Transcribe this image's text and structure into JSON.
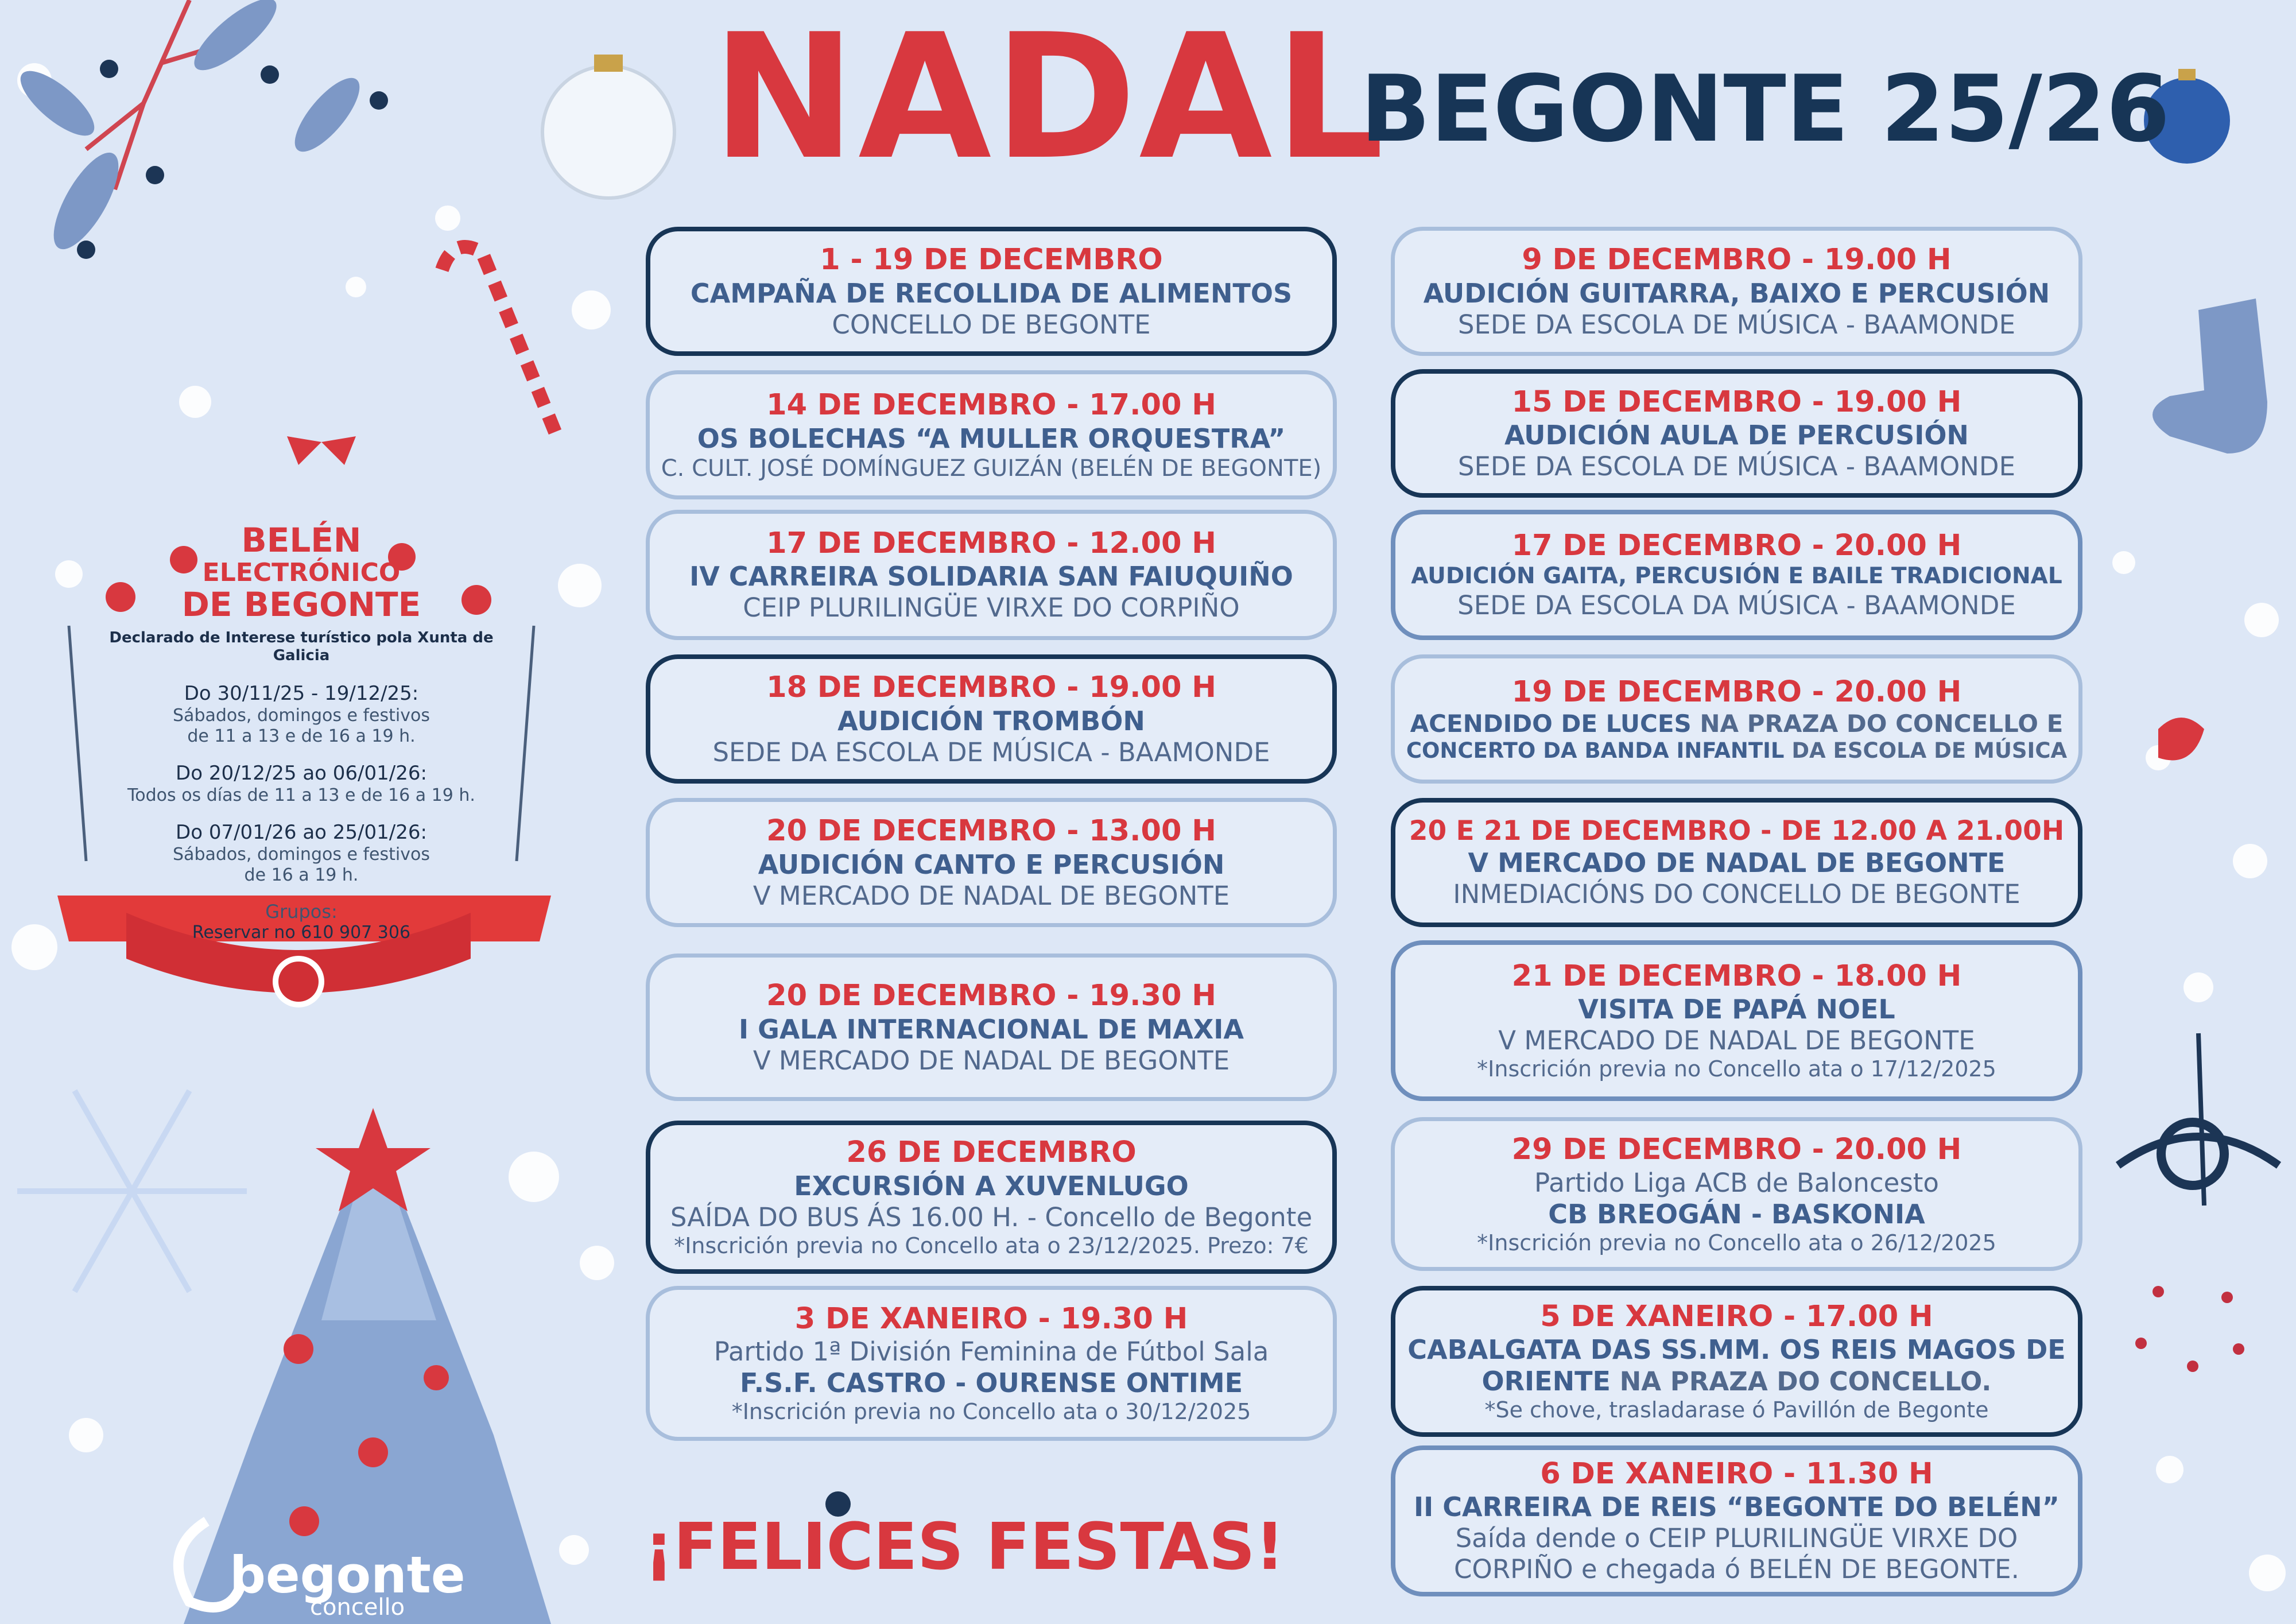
{
  "header": {
    "title": "NADAL",
    "subtitle": "BEGONTE 25/26"
  },
  "events": [
    {
      "border": "dark",
      "date": "1 - 19 DE DECEMBRO",
      "lines": [
        [
          [
            "b",
            "CAMPAÑA DE RECOLLIDA DE ALIMENTOS"
          ]
        ],
        [
          [
            "p",
            "CONCELLO DE BEGONTE"
          ]
        ]
      ]
    },
    {
      "border": "light",
      "date": "14 DE DECEMBRO - 17.00 H",
      "lines": [
        [
          [
            "b",
            "OS BOLECHAS “A MULLER ORQUESTRA”"
          ]
        ],
        [
          [
            "p",
            "C. CULT. JOSÉ DOMÍNGUEZ GUIZÁN (BELÉN DE BEGONTE)"
          ]
        ]
      ]
    },
    {
      "border": "light",
      "date": "17 DE DECEMBRO - 12.00 H",
      "lines": [
        [
          [
            "b",
            "IV CARREIRA SOLIDARIA SAN FAIUQUIÑO"
          ]
        ],
        [
          [
            "p",
            "CEIP PLURILINGÜE VIRXE DO CORPIÑO"
          ]
        ]
      ]
    },
    {
      "border": "dark",
      "date": "18 DE DECEMBRO - 19.00 H",
      "lines": [
        [
          [
            "b",
            "AUDICIÓN TROMBÓN"
          ]
        ],
        [
          [
            "p",
            "SEDE DA ESCOLA DE MÚSICA - BAAMONDE"
          ]
        ]
      ]
    },
    {
      "border": "light",
      "date": "20 DE DECEMBRO - 13.00 H",
      "lines": [
        [
          [
            "b",
            "AUDICIÓN CANTO E PERCUSIÓN"
          ]
        ],
        [
          [
            "p",
            "V MERCADO DE NADAL DE BEGONTE"
          ]
        ]
      ]
    },
    {
      "border": "light",
      "date": "20 DE DECEMBRO - 19.30 H",
      "lines": [
        [
          [
            "b",
            "I GALA INTERNACIONAL DE MAXIA"
          ]
        ],
        [
          [
            "p",
            "V MERCADO DE NADAL DE BEGONTE"
          ]
        ]
      ]
    },
    {
      "border": "dark",
      "date": "26 DE DECEMBRO",
      "lines": [
        [
          [
            "b",
            "EXCURSIÓN A XUVENLUGO"
          ]
        ],
        [
          [
            "p",
            "SAÍDA DO BUS ÁS 16.00 H. - Concello de Begonte"
          ]
        ],
        [
          [
            "n",
            "*Inscrición previa no Concello ata o 23/12/2025. Prezo: 7€"
          ]
        ]
      ]
    },
    {
      "border": "light",
      "date": "3 DE XANEIRO - 19.30 H",
      "lines": [
        [
          [
            "p",
            "Partido 1ª División Feminina de Fútbol Sala"
          ]
        ],
        [
          [
            "b",
            "F.S.F. CASTRO - OURENSE ONTIME"
          ]
        ],
        [
          [
            "n",
            "*Inscrición previa no Concello ata o 30/12/2025"
          ]
        ]
      ]
    },
    {
      "border": "light",
      "date": "9 DE DECEMBRO - 19.00 H",
      "lines": [
        [
          [
            "b",
            "AUDICIÓN GUITARRA, BAIXO E PERCUSIÓN"
          ]
        ],
        [
          [
            "p",
            "SEDE DA ESCOLA DE MÚSICA - BAAMONDE"
          ]
        ]
      ]
    },
    {
      "border": "dark",
      "date": "15 DE DECEMBRO - 19.00 H",
      "lines": [
        [
          [
            "b",
            "AUDICIÓN AULA DE PERCUSIÓN"
          ]
        ],
        [
          [
            "p",
            "SEDE DA ESCOLA DE MÚSICA - BAAMONDE"
          ]
        ]
      ]
    },
    {
      "border": "medium",
      "date": "17 DE DECEMBRO - 20.00 H",
      "lines": [
        [
          [
            "b",
            "AUDICIÓN GAITA, PERCUSIÓN E BAILE TRADICIONAL"
          ]
        ],
        [
          [
            "p",
            "SEDE DA ESCOLA DA MÚSICA - BAAMONDE"
          ]
        ]
      ]
    },
    {
      "border": "light",
      "date": "19 DE DECEMBRO - 20.00 H",
      "lines": [
        [
          [
            "b",
            "ACENDIDO DE LUCES"
          ],
          [
            "p",
            " NA PRAZA DO CONCELLO E"
          ]
        ],
        [
          [
            "b",
            "CONCERTO DA BANDA INFANTIL"
          ],
          [
            "p",
            " DA ESCOLA DE MÚSICA"
          ]
        ]
      ]
    },
    {
      "border": "dark",
      "date": "20 E 21 DE DECEMBRO - DE 12.00 A 21.00H",
      "lines": [
        [
          [
            "b",
            "V MERCADO DE NADAL DE BEGONTE"
          ]
        ],
        [
          [
            "p",
            "INMEDIACIÓNS DO CONCELLO DE BEGONTE"
          ]
        ]
      ]
    },
    {
      "border": "medium",
      "date": "21 DE DECEMBRO - 18.00 H",
      "lines": [
        [
          [
            "b",
            "VISITA DE PAPÁ NOEL"
          ]
        ],
        [
          [
            "p",
            "V MERCADO DE NADAL DE BEGONTE"
          ]
        ],
        [
          [
            "n",
            "*Inscrición previa no Concello ata o 17/12/2025"
          ]
        ]
      ]
    },
    {
      "border": "light",
      "date": "29 DE DECEMBRO - 20.00 H",
      "lines": [
        [
          [
            "p",
            "Partido Liga ACB de Baloncesto"
          ]
        ],
        [
          [
            "b",
            "CB BREOGÁN - BASKONIA"
          ]
        ],
        [
          [
            "n",
            "*Inscrición previa no Concello ata o 26/12/2025"
          ]
        ]
      ]
    },
    {
      "border": "dark",
      "date": "5 DE XANEIRO - 17.00 H",
      "lines": [
        [
          [
            "b",
            "CABALGATA DAS SS.MM. OS REIS MAGOS DE"
          ]
        ],
        [
          [
            "b",
            "ORIENTE"
          ],
          [
            "p",
            " NA PRAZA DO CONCELLO."
          ]
        ],
        [
          [
            "n",
            "*Se chove, trasladarase ó Pavillón de Begonte"
          ]
        ]
      ]
    },
    {
      "border": "medium",
      "date": "6 DE XANEIRO - 11.30 H",
      "lines": [
        [
          [
            "b",
            "II CARREIRA DE REIS “BEGONTE DO BELÉN”"
          ]
        ],
        [
          [
            "p",
            "Saída dende o CEIP PLURILINGÜE VIRXE DO"
          ]
        ],
        [
          [
            "p",
            "CORPIÑO e chegada ó BELÉN DE BEGONTE."
          ]
        ]
      ]
    }
  ],
  "belen": {
    "title": [
      "BELÉN",
      "ELECTRÓNICO",
      "DE BEGONTE"
    ],
    "declared": "Declarado de Interese turístico pola Xunta de Galicia",
    "schedule": [
      [
        "Do 30/11/25 - 19/12/25:",
        "Sábados, domingos e festivos",
        "de 11 a 13 e de 16 a 19 h."
      ],
      [
        "Do 20/12/25 ao 06/01/26:",
        "Todos os días de 11 a 13 e de 16 a 19 h."
      ],
      [
        "Do 07/01/26 ao 25/01/26:",
        "Sábados, domingos e festivos",
        "de 16 a 19 h."
      ]
    ],
    "groups": "Grupos:",
    "reserve": "Reservar no 610 907 306"
  },
  "footer": {
    "greeting": "¡FELICES FESTAS!",
    "logo": "begonte",
    "logo_sub": "concello"
  }
}
